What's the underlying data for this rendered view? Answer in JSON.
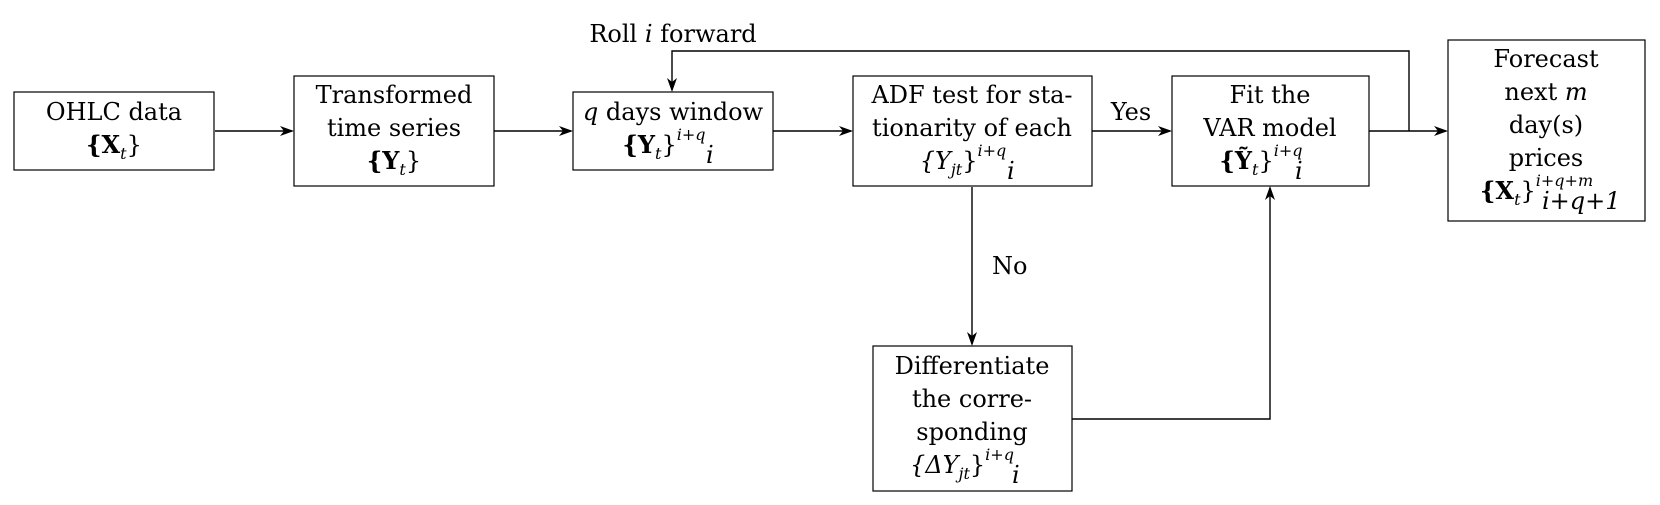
{
  "nodes": {
    "ohlc": {
      "line1": "OHLC data",
      "math_base": "{X",
      "math_sub": "t",
      "math_close": "}"
    },
    "transformed": {
      "line1": "Transformed",
      "line2": "time series",
      "math_base": "{Y",
      "math_sub": "t",
      "math_close": "}"
    },
    "window": {
      "line1_var": "q",
      "line1_text": " days window",
      "math_base": "{Y",
      "math_sub_t": "t",
      "math_close": "}",
      "math_sup": "i+q",
      "math_sub": "i"
    },
    "adf": {
      "line1": "ADF test for sta-",
      "line2": "tionarity of each",
      "math_base": "{Y",
      "math_sub_jt": "jt",
      "math_close": "}",
      "math_sup": "i+q",
      "math_sub": "i"
    },
    "var": {
      "line1": "Fit the",
      "line2": "VAR model",
      "math_base": "{Ỹ",
      "math_sub_t": "t",
      "math_close": "}",
      "math_sup": "i+q",
      "math_sub": "i"
    },
    "forecast": {
      "line1": "Forecast",
      "line2_text": "next ",
      "line2_var": "m",
      "line3": "day(s)",
      "line4": "prices",
      "math_base": "{X",
      "math_sub_t": "t",
      "math_close": "}",
      "math_sup": "i+q+m",
      "math_sub": "i+q+1"
    },
    "diff": {
      "line1": "Differentiate",
      "line2": "the corre-",
      "line3": "sponding",
      "math_base": "{ΔY",
      "math_sub_jt": "jt",
      "math_close": "}",
      "math_sup": "i+q",
      "math_sub": "i"
    }
  },
  "labels": {
    "roll_text1": "Roll ",
    "roll_var": "i",
    "roll_text2": " forward",
    "yes": "Yes",
    "no": "No"
  }
}
